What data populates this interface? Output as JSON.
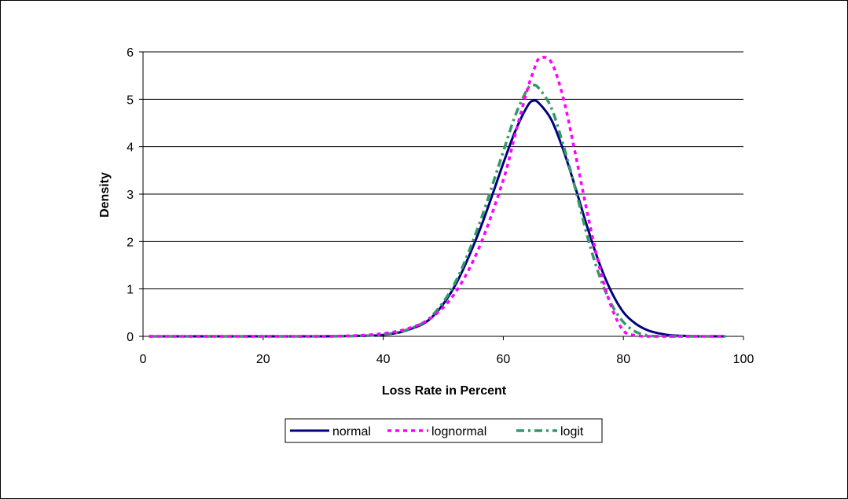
{
  "chart_data": {
    "type": "line",
    "title": "",
    "xlabel": "Loss Rate in Percent",
    "ylabel": "Density",
    "xlim": [
      0,
      100
    ],
    "ylim": [
      0,
      6
    ],
    "xticks": [
      0,
      20,
      40,
      60,
      80,
      100
    ],
    "yticks": [
      0,
      1,
      2,
      3,
      4,
      5,
      6
    ],
    "grid": "horizontal",
    "legend": "bottom",
    "x": [
      1,
      10,
      20,
      30,
      36,
      40,
      44,
      48,
      52,
      56,
      60,
      62,
      64,
      65,
      66,
      68,
      70,
      72,
      74,
      76,
      78,
      80,
      82,
      84,
      86,
      88,
      90,
      93,
      97
    ],
    "series": [
      {
        "name": "normal",
        "color": "#000080",
        "style": "solid",
        "values": [
          0,
          0,
          0,
          0,
          0.01,
          0.03,
          0.13,
          0.39,
          1.08,
          2.22,
          3.65,
          4.33,
          4.85,
          4.97,
          4.91,
          4.57,
          3.93,
          3.14,
          2.3,
          1.54,
          0.94,
          0.51,
          0.27,
          0.13,
          0.06,
          0.02,
          0.01,
          0,
          0
        ]
      },
      {
        "name": "lognormal",
        "color": "#FF00FF",
        "style": "dotted",
        "values": [
          0,
          0,
          0,
          0,
          0.02,
          0.06,
          0.16,
          0.39,
          0.92,
          1.88,
          3.3,
          4.27,
          5.2,
          5.58,
          5.86,
          5.78,
          5.02,
          3.85,
          2.6,
          1.47,
          0.62,
          0.12,
          0.02,
          0,
          0,
          0,
          0,
          0,
          0
        ]
      },
      {
        "name": "logit",
        "color": "#339966",
        "style": "dashdot",
        "values": [
          0,
          0,
          0,
          0,
          0.01,
          0.04,
          0.14,
          0.42,
          1.14,
          2.37,
          3.9,
          4.66,
          5.21,
          5.3,
          5.22,
          4.82,
          4.03,
          3.11,
          2.11,
          1.28,
          0.68,
          0.3,
          0.1,
          0.02,
          0,
          0,
          0,
          0,
          0
        ]
      }
    ]
  }
}
